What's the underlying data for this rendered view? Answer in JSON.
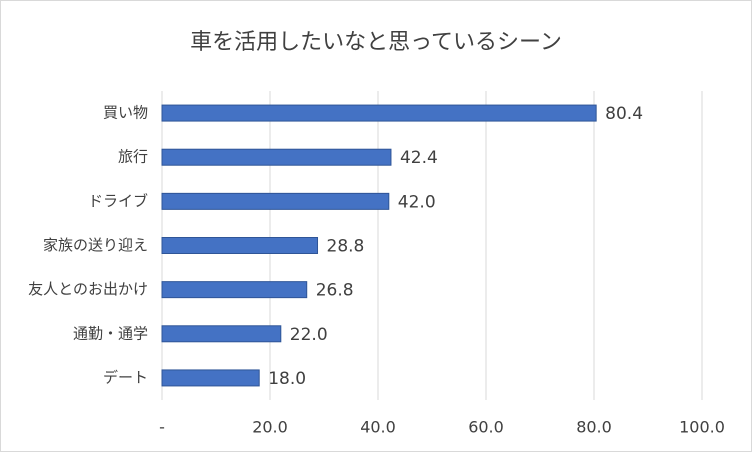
{
  "chart_data": {
    "type": "bar",
    "orientation": "horizontal",
    "title": "車を活用したいなと思っているシーン",
    "categories": [
      "買い物",
      "旅行",
      "ドライブ",
      "家族の送り迎え",
      "友人とのお出かけ",
      "通勤・通学",
      "デート"
    ],
    "values": [
      80.4,
      42.4,
      42.0,
      28.8,
      26.8,
      22.0,
      18.0
    ],
    "value_labels": [
      "80.4",
      "42.4",
      "42.0",
      "28.8",
      "26.8",
      "22.0",
      "18.0"
    ],
    "color": "#4472c4",
    "xlim": [
      0,
      100
    ],
    "xticks": [
      {
        "value": 0,
        "label": "-"
      },
      {
        "value": 20,
        "label": "20.0"
      },
      {
        "value": 40,
        "label": "40.0"
      },
      {
        "value": 60,
        "label": "60.0"
      },
      {
        "value": 80,
        "label": "80.0"
      },
      {
        "value": 100,
        "label": "100.0"
      }
    ],
    "grid": true
  }
}
